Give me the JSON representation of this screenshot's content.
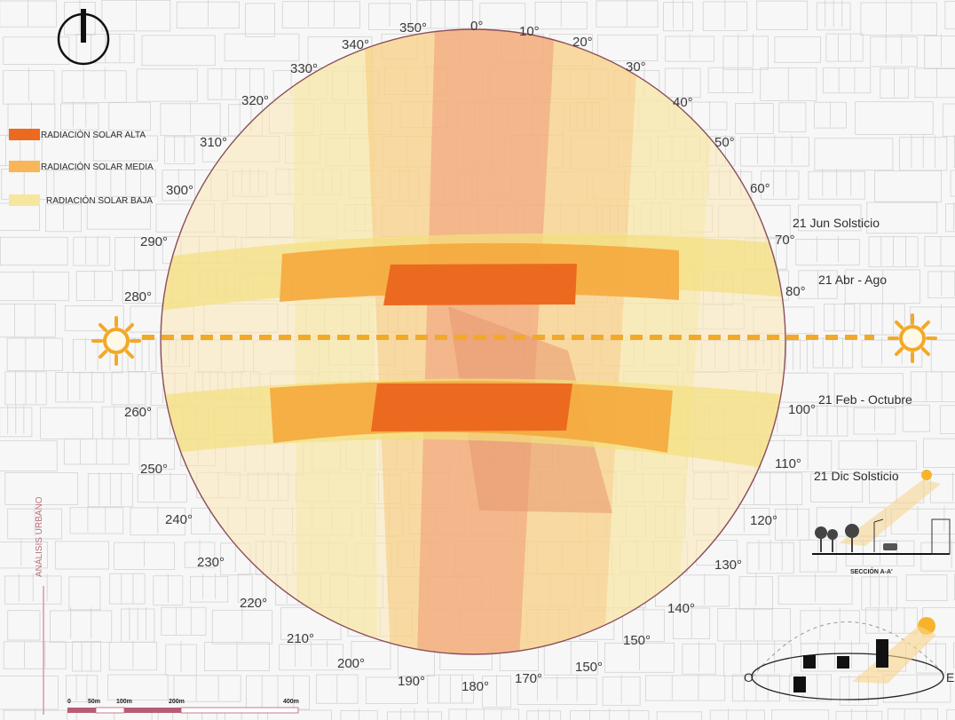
{
  "legend": {
    "high": {
      "label": "RADIACIÓN  SOLAR ALTA",
      "color": "#ec6a1f"
    },
    "medium": {
      "label": "RADIACIÓN SOLAR MEDIA",
      "color": "#f8b659"
    },
    "low": {
      "label": "RADIACIÓN SOLAR  BAJA",
      "color": "#f6e6a0"
    }
  },
  "compass_degrees": [
    "0°",
    "10°",
    "20°",
    "30°",
    "40°",
    "50°",
    "60°",
    "70°",
    "80°",
    "100°",
    "110°",
    "120°",
    "130°",
    "140°",
    "150°",
    "150°",
    "170°",
    "180°",
    "190°",
    "200°",
    "210°",
    "220°",
    "230°",
    "240°",
    "250°",
    "260°",
    "280°",
    "290°",
    "300°",
    "310°",
    "320°",
    "330°",
    "340°",
    "350°"
  ],
  "seasons": {
    "jun": "21 Jun Solsticio",
    "abr": "21 Abr - Ago",
    "feb": "21 Feb - Octubre",
    "dic": "21 Dic Solsticio"
  },
  "side_label": "ANÁLISIS URBANO",
  "section_label": "SECCIÓN A-A'",
  "orientation": {
    "west": "O",
    "east": "E"
  },
  "scale_bar": [
    "0",
    "50m",
    "100m",
    "200m",
    "400m"
  ],
  "colors": {
    "sun": "#f7b32b",
    "ring": "#8c4f5c",
    "scale": "#b85c74"
  },
  "icons": [
    "north-arrow-icon",
    "sun-icon-west",
    "sun-icon-east"
  ]
}
